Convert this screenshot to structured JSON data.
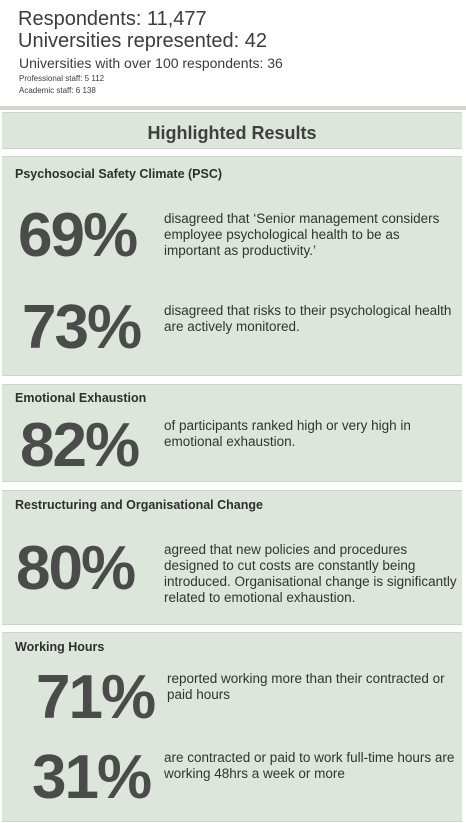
{
  "summary": {
    "respondents": "Respondents: 11,477",
    "universities": "Universities represented: 42",
    "over100": "Universities with over 100 respondents: 36",
    "professional": "Professional staff: 5 112",
    "academic": "Academic staff: 6 138"
  },
  "highlight_title": "Highlighted Results",
  "sections": {
    "psc": {
      "title": "Psychosocial Safety Climate (PSC)",
      "stats": [
        {
          "value": "69%",
          "text": "disagreed that ‘Senior management considers employee psychological health to be as important as productivity.’"
        },
        {
          "value": "73%",
          "text": "disagreed that risks to their psychological health are actively monitored."
        }
      ]
    },
    "exhaustion": {
      "title": "Emotional Exhaustion",
      "stats": [
        {
          "value": "82%",
          "text": "of participants ranked high or very high in emotional exhaustion."
        }
      ]
    },
    "restructuring": {
      "title": "Restructuring and Organisational Change",
      "stats": [
        {
          "value": "80%",
          "text": "agreed that new policies and procedures designed to cut costs are constantly being introduced. Organisational change is significantly related to emotional exhaustion."
        }
      ]
    },
    "hours": {
      "title": "Working Hours",
      "stats": [
        {
          "value": "71%",
          "text": "reported working more than their contracted or paid hours"
        },
        {
          "value": "31%",
          "text": "are contracted or paid to work full-time hours are working 48hrs a week or more"
        }
      ]
    }
  },
  "colors": {
    "panel_bg": "#dde6db",
    "percent_text": "#4b4b4b",
    "body_text": "#333333"
  }
}
